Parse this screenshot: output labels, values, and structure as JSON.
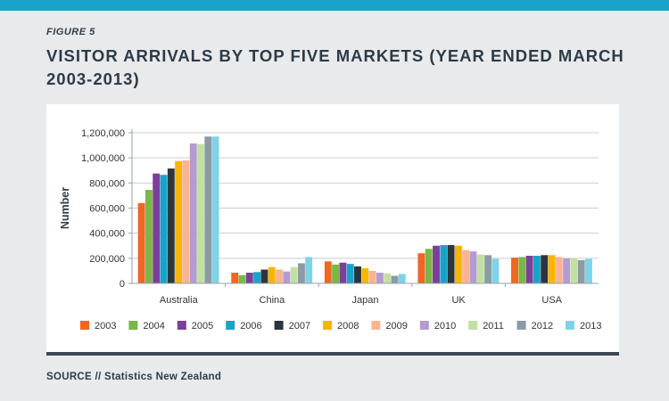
{
  "figure_label": "FIGURE 5",
  "title": "VISITOR ARRIVALS BY TOP FIVE MARKETS (YEAR ENDED MARCH 2003-2013)",
  "source": "SOURCE // Statistics New Zealand",
  "colors": {
    "topbar": "#1aa3c8",
    "series": [
      "#f26522",
      "#7ab648",
      "#7b3f99",
      "#1aa3c8",
      "#2b3540",
      "#f7b500",
      "#fbb490",
      "#b49bd0",
      "#c3e0a3",
      "#8c9aa3",
      "#7fd3e6"
    ]
  },
  "chart_data": {
    "type": "bar",
    "title": "VISITOR ARRIVALS BY TOP FIVE MARKETS (YEAR ENDED MARCH 2003-2013)",
    "xlabel": "",
    "ylabel": "Number",
    "ylim": [
      0,
      1200000
    ],
    "yticks": [
      0,
      200000,
      400000,
      600000,
      800000,
      1000000,
      1200000
    ],
    "ytick_labels": [
      "0",
      "200,000",
      "400,000",
      "600,000",
      "800,000",
      "1,000,000",
      "1,200,000"
    ],
    "grid": true,
    "legend_position": "bottom",
    "categories": [
      "Australia",
      "China",
      "Japan",
      "UK",
      "USA"
    ],
    "series": [
      {
        "name": "2003",
        "values": [
          640000,
          85000,
          175000,
          240000,
          205000
        ]
      },
      {
        "name": "2004",
        "values": [
          745000,
          65000,
          150000,
          275000,
          210000
        ]
      },
      {
        "name": "2005",
        "values": [
          875000,
          85000,
          165000,
          300000,
          220000
        ]
      },
      {
        "name": "2006",
        "values": [
          865000,
          90000,
          155000,
          305000,
          220000
        ]
      },
      {
        "name": "2007",
        "values": [
          915000,
          110000,
          135000,
          305000,
          225000
        ]
      },
      {
        "name": "2008",
        "values": [
          975000,
          130000,
          120000,
          300000,
          225000
        ]
      },
      {
        "name": "2009",
        "values": [
          980000,
          110000,
          100000,
          265000,
          210000
        ]
      },
      {
        "name": "2010",
        "values": [
          1115000,
          95000,
          85000,
          255000,
          200000
        ]
      },
      {
        "name": "2011",
        "values": [
          1110000,
          130000,
          80000,
          230000,
          200000
        ]
      },
      {
        "name": "2012",
        "values": [
          1170000,
          160000,
          60000,
          225000,
          185000
        ]
      },
      {
        "name": "2013",
        "values": [
          1170000,
          210000,
          75000,
          195000,
          195000
        ]
      }
    ]
  }
}
